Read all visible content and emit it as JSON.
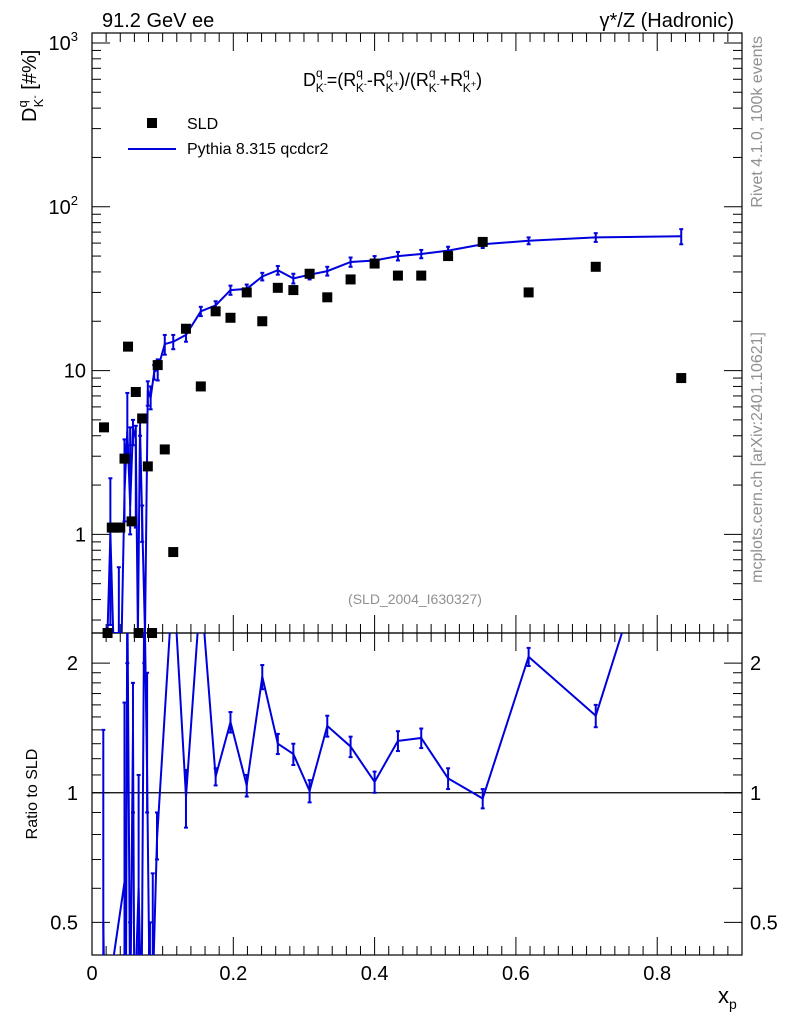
{
  "header": {
    "energy": "91.2 GeV ee",
    "process": "γ*/Z (Hadronic)"
  },
  "side_labels": {
    "rivet": "Rivet 4.1.0,  100k events",
    "mcplots": "mcplots.cern.ch [arXiv:2401.10621]"
  },
  "analysis_id": "(SLD_2004_I630327)",
  "formula": "D_K^q=(R_K-^q - R_K+^q)/(R_K-^q + R_K+^q)",
  "colors": {
    "mc": "#0000dd",
    "data": "#000000",
    "grey": "#909090"
  },
  "chart_data": [
    {
      "type": "scatter",
      "title": "D_K-^q = (R_K-^q - R_K+^q)/(R_K-^q + R_K+^q)",
      "ylabel": "D_K-^q [#%]",
      "xlabel": "x_p",
      "yscale": "log",
      "xlim": [
        0,
        0.92
      ],
      "ylim": [
        0.25,
        1150
      ],
      "ytick_labels": [
        "1",
        "10",
        "10^2",
        "10^3"
      ],
      "legend": {
        "placement": "top-left",
        "entries": [
          "SLD",
          "Pythia 8.315 qcdcr2"
        ]
      },
      "series": [
        {
          "name": "SLD",
          "kind": "markers",
          "points": [
            [
              0.017,
              4.5
            ],
            [
              0.022,
              0.25
            ],
            [
              0.028,
              1.1
            ],
            [
              0.034,
              1.1
            ],
            [
              0.04,
              1.1
            ],
            [
              0.046,
              2.9
            ],
            [
              0.051,
              14.0
            ],
            [
              0.056,
              1.2
            ],
            [
              0.062,
              7.4
            ],
            [
              0.066,
              0.25
            ],
            [
              0.071,
              5.1
            ],
            [
              0.079,
              2.6
            ],
            [
              0.085,
              0.25
            ],
            [
              0.093,
              10.8
            ],
            [
              0.103,
              3.3
            ],
            [
              0.115,
              0.78
            ],
            [
              0.133,
              18.0
            ],
            [
              0.154,
              8.0
            ],
            [
              0.175,
              23.0
            ],
            [
              0.196,
              21.0
            ],
            [
              0.219,
              30.0
            ],
            [
              0.241,
              20.0
            ],
            [
              0.263,
              32.0
            ],
            [
              0.285,
              31.0
            ],
            [
              0.308,
              39.0
            ],
            [
              0.333,
              28.0
            ],
            [
              0.366,
              36.0
            ],
            [
              0.4,
              45.0
            ],
            [
              0.433,
              38.0
            ],
            [
              0.466,
              38.0
            ],
            [
              0.504,
              50.0
            ],
            [
              0.553,
              61.0
            ],
            [
              0.618,
              30.0
            ],
            [
              0.713,
              43.0
            ],
            [
              0.834,
              9.0
            ]
          ]
        },
        {
          "name": "Pythia 8.315 qcdcr2",
          "kind": "line-errorbars",
          "points": [
            [
              0.017,
              0.25,
              0,
              0
            ],
            [
              0.022,
              0.25,
              0,
              0
            ],
            [
              0.026,
              1.0,
              0.72,
              1.2
            ],
            [
              0.03,
              0.25,
              0,
              0
            ],
            [
              0.034,
              0.25,
              0,
              0
            ],
            [
              0.038,
              0.25,
              0,
              0.38
            ],
            [
              0.042,
              0.25,
              0,
              0
            ],
            [
              0.046,
              1.8,
              0.6,
              2.0
            ],
            [
              0.05,
              4.3,
              0.8,
              3.0
            ],
            [
              0.054,
              1.5,
              0.5,
              3.0
            ],
            [
              0.058,
              4.5,
              1.0,
              0.5
            ],
            [
              0.062,
              3.8,
              2.7,
              0.8
            ],
            [
              0.065,
              0.25,
              0,
              0
            ],
            [
              0.068,
              4.5,
              0.5,
              0.5
            ],
            [
              0.071,
              1.2,
              0.3,
              0.3
            ],
            [
              0.075,
              0.25,
              0,
              0
            ],
            [
              0.079,
              7.6,
              1.5,
              1.0
            ],
            [
              0.083,
              6.8,
              1.0,
              1.2
            ],
            [
              0.088,
              9.8,
              1.0,
              1.0
            ],
            [
              0.093,
              10.2,
              1.5,
              1.5
            ],
            [
              0.103,
              14.5,
              2.0,
              2.0
            ],
            [
              0.115,
              15.0,
              1.5,
              1.5
            ],
            [
              0.133,
              16.5,
              1.5,
              1.5
            ],
            [
              0.154,
              23.0,
              1.5,
              1.5
            ],
            [
              0.175,
              25.0,
              1.5,
              1.5
            ],
            [
              0.196,
              31.0,
              2.0,
              2.0
            ],
            [
              0.219,
              31.5,
              2.0,
              2.0
            ],
            [
              0.241,
              37.5,
              2.0,
              2.0
            ],
            [
              0.263,
              41.0,
              2.5,
              2.5
            ],
            [
              0.285,
              36.5,
              2.5,
              2.5
            ],
            [
              0.308,
              38.5,
              2.5,
              2.5
            ],
            [
              0.333,
              40.5,
              2.5,
              2.5
            ],
            [
              0.366,
              46.0,
              3.0,
              3.0
            ],
            [
              0.4,
              47.0,
              3.0,
              3.0
            ],
            [
              0.433,
              50.0,
              3.0,
              3.0
            ],
            [
              0.466,
              51.5,
              3.0,
              3.0
            ],
            [
              0.504,
              54.0,
              3.0,
              3.0
            ],
            [
              0.553,
              59.0,
              3.0,
              3.0
            ],
            [
              0.618,
              62.0,
              3.0,
              3.0
            ],
            [
              0.713,
              65.0,
              4.0,
              4.0
            ],
            [
              0.834,
              66.0,
              7.0,
              7.0
            ]
          ]
        }
      ]
    },
    {
      "type": "line",
      "title": "Ratio to SLD",
      "ylabel": "Ratio to SLD",
      "xlabel": "x_p",
      "xlim": [
        0,
        0.92
      ],
      "ylim": [
        0.42,
        2.35
      ],
      "yscale": "log",
      "yticks": [
        0.5,
        1,
        2
      ],
      "ytick_labels": [
        "0.5",
        "1",
        "2"
      ],
      "xticks": [
        0,
        0.2,
        0.4,
        0.6,
        0.8
      ],
      "xtick_labels": [
        "0",
        "0.2",
        "0.4",
        "0.6",
        "0.8"
      ],
      "reference_line": 1,
      "series": [
        {
          "name": "Pythia 8.315 qcdcr2 / SLD",
          "points": [
            [
              0.016,
              0.5,
              0.1,
              0.9
            ],
            [
              0.018,
              0.1,
              0,
              0
            ],
            [
              0.046,
              0.62,
              0.2,
              1.0
            ],
            [
              0.048,
              0.1,
              0,
              0
            ],
            [
              0.05,
              3.0,
              1.0,
              1.0
            ],
            [
              0.054,
              0.2,
              0.1,
              0.3
            ],
            [
              0.058,
              1.4,
              0.5,
              0.4
            ],
            [
              0.06,
              0.1,
              0,
              0
            ],
            [
              0.066,
              0.6,
              0.2,
              0.5
            ],
            [
              0.07,
              0.2,
              0.1,
              0.2
            ],
            [
              0.074,
              3.0,
              1.0,
              1.0
            ],
            [
              0.078,
              1.1,
              0.2,
              0.8
            ],
            [
              0.082,
              0.2,
              0.1,
              0.3
            ],
            [
              0.086,
              0.35,
              0.1,
              0.3
            ],
            [
              0.092,
              0.78,
              0.08,
              0.12
            ],
            [
              0.115,
              3.2,
              0.3,
              0.3
            ],
            [
              0.133,
              0.98,
              0.15,
              0.15
            ],
            [
              0.154,
              3.0,
              0.3,
              0.3
            ],
            [
              0.175,
              1.09,
              0.05,
              0.05
            ],
            [
              0.196,
              1.46,
              0.08,
              0.08
            ],
            [
              0.219,
              1.04,
              0.06,
              0.06
            ],
            [
              0.241,
              1.86,
              0.12,
              0.12
            ],
            [
              0.263,
              1.3,
              0.07,
              0.07
            ],
            [
              0.285,
              1.23,
              0.07,
              0.07
            ],
            [
              0.308,
              1.01,
              0.06,
              0.06
            ],
            [
              0.333,
              1.43,
              0.08,
              0.08
            ],
            [
              0.366,
              1.28,
              0.07,
              0.07
            ],
            [
              0.4,
              1.06,
              0.06,
              0.06
            ],
            [
              0.433,
              1.32,
              0.07,
              0.07
            ],
            [
              0.466,
              1.34,
              0.07,
              0.07
            ],
            [
              0.504,
              1.08,
              0.06,
              0.06
            ],
            [
              0.553,
              0.97,
              0.05,
              0.05
            ],
            [
              0.618,
              2.07,
              0.1,
              0.1
            ],
            [
              0.713,
              1.51,
              0.09,
              0.09
            ],
            [
              0.75,
              2.35,
              0,
              0
            ]
          ]
        }
      ]
    }
  ]
}
